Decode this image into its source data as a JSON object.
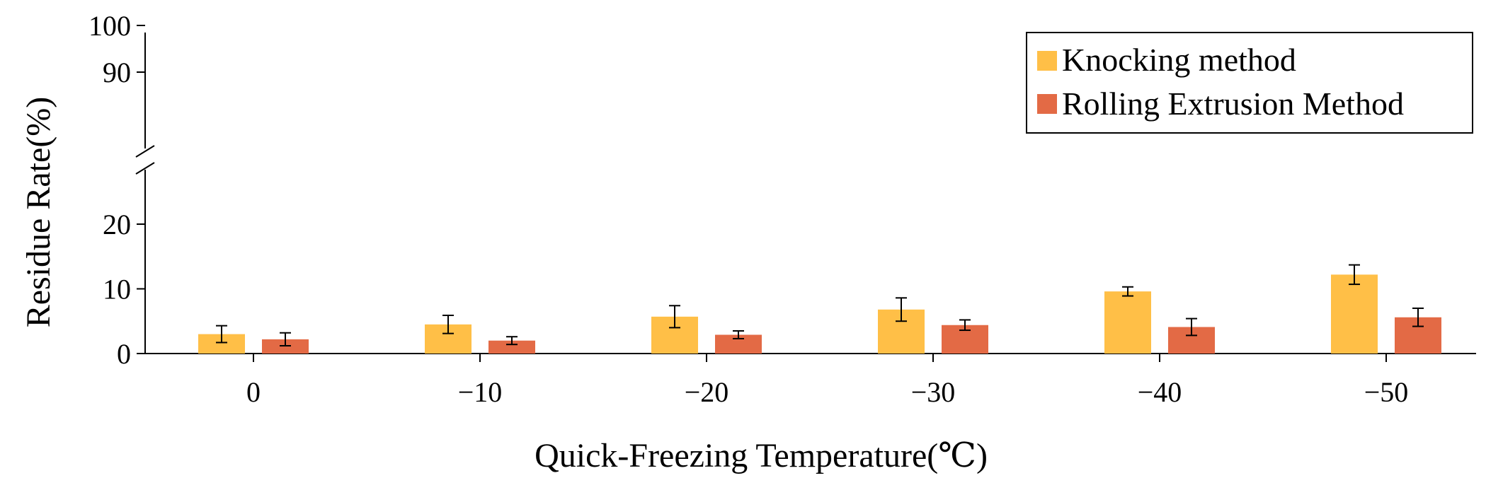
{
  "chart_data": {
    "type": "bar",
    "xlabel": "Quick-Freezing Temperature(℃)",
    "ylabel": "Residue Rate(%)",
    "categories": [
      "0",
      "−10",
      "−20",
      "−30",
      "−40",
      "−50"
    ],
    "series": [
      {
        "name": "Knocking method",
        "color": "#FFBF47",
        "values": [
          3.0,
          4.5,
          5.7,
          6.8,
          9.6,
          12.2
        ],
        "errors": [
          1.3,
          1.4,
          1.7,
          1.8,
          0.7,
          1.5
        ]
      },
      {
        "name": "Rolling Extrusion Method",
        "color": "#E36A45",
        "values": [
          2.2,
          2.0,
          2.9,
          4.4,
          4.1,
          5.6
        ],
        "errors": [
          1.0,
          0.6,
          0.6,
          0.8,
          1.3,
          1.4
        ]
      }
    ],
    "y_segments": [
      {
        "range": [
          0,
          25
        ],
        "ticks": [
          "0",
          "10",
          "20"
        ]
      },
      {
        "range": [
          80,
          100
        ],
        "ticks": [
          "90",
          "100"
        ]
      }
    ],
    "legend_position": "top-right"
  }
}
